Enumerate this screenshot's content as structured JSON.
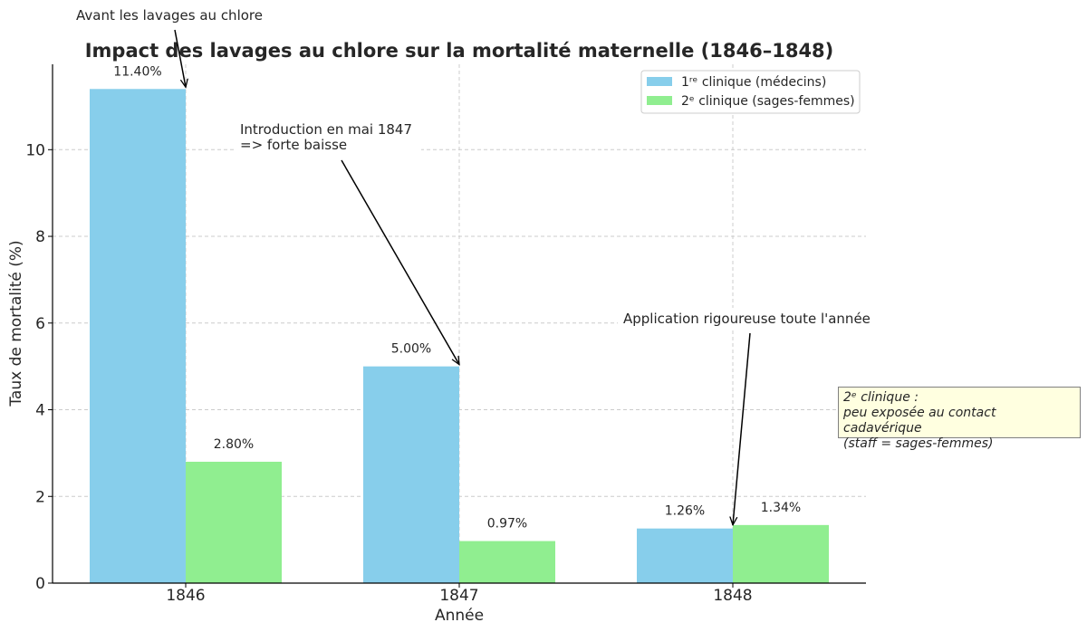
{
  "chart_data": {
    "type": "bar",
    "title": "Impact des lavages au chlore sur la mortalité maternelle (1846–1848)",
    "xlabel": "Année",
    "ylabel": "Taux de mortalité (%)",
    "categories": [
      "1846",
      "1847",
      "1848"
    ],
    "ylim": [
      0,
      11.97
    ],
    "yticks": [
      0,
      2,
      4,
      6,
      8,
      10
    ],
    "grid": true,
    "legend_position": "top-right",
    "series": [
      {
        "name": "1ʳᵉ clinique (médecins)",
        "color": "#87ceeb",
        "values": [
          11.4,
          5.0,
          1.26
        ],
        "labels": [
          "11.40%",
          "5.00%",
          "1.26%"
        ]
      },
      {
        "name": "2ᵉ clinique (sages-femmes)",
        "color": "#90ee90",
        "values": [
          2.8,
          0.97,
          1.34
        ],
        "labels": [
          "2.80%",
          "0.97%",
          "1.34%"
        ]
      }
    ],
    "annotations": [
      {
        "text": [
          "Avant les lavages au chlore"
        ],
        "target": [
          0,
          11.4
        ]
      },
      {
        "text": [
          "Introduction en mai 1847",
          "=> forte baisse"
        ],
        "target": [
          1,
          5.0
        ]
      },
      {
        "text": [
          "Application rigoureuse toute l'année"
        ],
        "target": [
          2,
          1.3
        ]
      }
    ],
    "note": {
      "lines": [
        "2ᵉ clinique :",
        "peu exposée au contact cadavérique",
        "(staff = sages-femmes)"
      ]
    }
  }
}
